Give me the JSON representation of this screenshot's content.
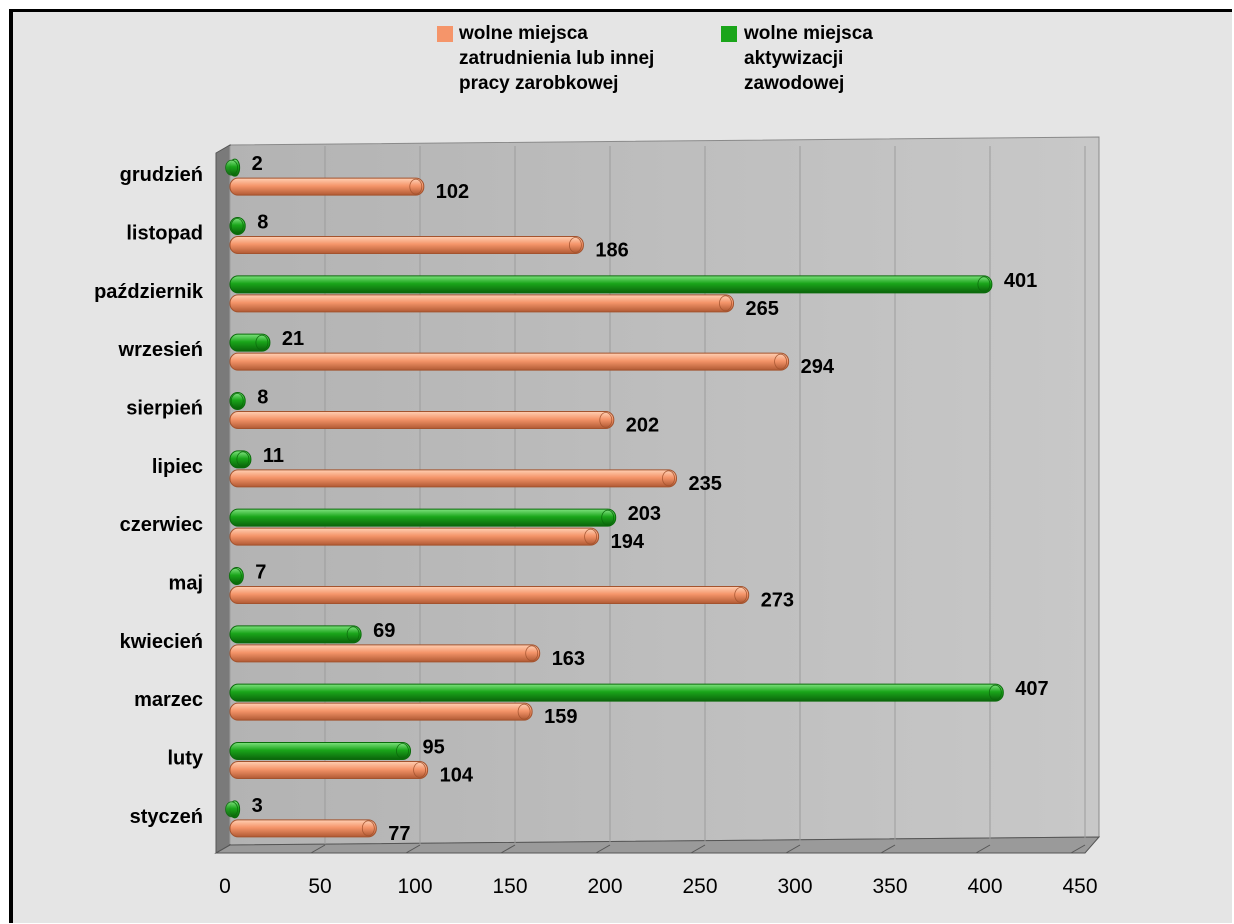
{
  "chart_data": {
    "type": "bar",
    "orientation": "horizontal",
    "categories": [
      "styczeń",
      "luty",
      "marzec",
      "kwiecień",
      "maj",
      "czerwiec",
      "lipiec",
      "sierpień",
      "wrzesień",
      "październik",
      "listopad",
      "grudzień"
    ],
    "series": [
      {
        "name": "wolne miejsca zatrudnienia lub innej pracy zarobkowej",
        "color": "#f5956a",
        "values": [
          77,
          104,
          159,
          163,
          273,
          194,
          235,
          202,
          294,
          265,
          186,
          102
        ]
      },
      {
        "name": "wolne miejsca aktywizacji zawodowej",
        "color": "#1aa51a",
        "values": [
          3,
          95,
          407,
          69,
          7,
          203,
          11,
          8,
          21,
          401,
          8,
          2
        ]
      }
    ],
    "xlim": [
      0,
      450
    ],
    "xticks": [
      0,
      50,
      100,
      150,
      200,
      250,
      300,
      350,
      400,
      450
    ],
    "grid": true,
    "data_labels": true,
    "legend": "top",
    "title": "",
    "xlabel": "",
    "ylabel": ""
  },
  "legend": {
    "items": [
      {
        "label": "wolne miejsca\nzatrudnienia lub innej\npracy zarobkowej",
        "color": "#f5956a"
      },
      {
        "label": "wolne miejsca\naktywizacji\nzawodowej",
        "color": "#1aa51a"
      }
    ]
  }
}
